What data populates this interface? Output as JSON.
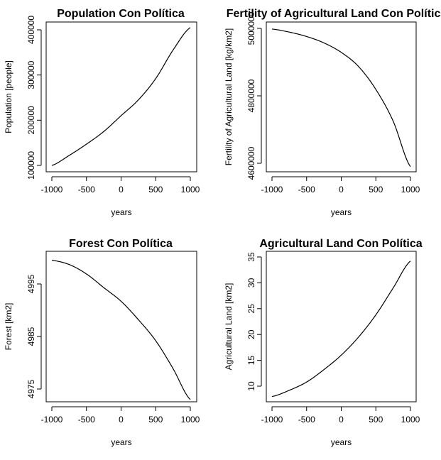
{
  "chart_data": [
    {
      "type": "line",
      "title": "Population Con Política",
      "xlabel": "years",
      "ylabel": "Population [people]",
      "xlim": [
        -1000,
        1000
      ],
      "ylim": [
        100000,
        400000
      ],
      "xticks": [
        -1000,
        -500,
        0,
        500,
        1000
      ],
      "yticks": [
        100000,
        200000,
        300000,
        400000
      ],
      "xtick_labels": [
        "-1000",
        "-500",
        "0",
        "500",
        "1000"
      ],
      "ytick_labels": [
        "100000",
        "200000",
        "300000",
        "400000"
      ],
      "grid": false,
      "series": [
        {
          "x": [
            -1000,
            -750,
            -500,
            -250,
            0,
            250,
            500,
            750,
            1000
          ],
          "y": [
            100000,
            122000,
            147000,
            175000,
            210000,
            245000,
            292000,
            355000,
            405000
          ]
        }
      ]
    },
    {
      "type": "line",
      "title": "Fertility of Agricultural Land Con Política",
      "xlabel": "years",
      "ylabel": "Fertility of Agricultural Land [kg/km2]",
      "xlim": [
        -1000,
        1000
      ],
      "ylim": [
        4600000,
        5000000
      ],
      "xticks": [
        -1000,
        -500,
        0,
        500,
        1000
      ],
      "yticks": [
        4600000,
        4800000,
        5000000
      ],
      "xtick_labels": [
        "-1000",
        "-500",
        "0",
        "500",
        "1000"
      ],
      "ytick_labels": [
        "4600000",
        "4800000",
        "5000000"
      ],
      "grid": false,
      "series": [
        {
          "x": [
            -1000,
            -750,
            -500,
            -250,
            0,
            250,
            500,
            750,
            1000
          ],
          "y": [
            4998000,
            4989000,
            4976000,
            4957000,
            4929000,
            4887000,
            4819000,
            4725000,
            4590000
          ]
        }
      ]
    },
    {
      "type": "line",
      "title": "Forest Con Política",
      "xlabel": "years",
      "ylabel": "Forest [km2]",
      "xlim": [
        -1000,
        1000
      ],
      "ylim": [
        4975,
        4995
      ],
      "xticks": [
        -1000,
        -500,
        0,
        500,
        1000
      ],
      "yticks": [
        4975,
        4985,
        4995
      ],
      "xtick_labels": [
        "-1000",
        "-500",
        "0",
        "500",
        "1000"
      ],
      "ytick_labels": [
        "4975",
        "4985",
        "4995"
      ],
      "grid": false,
      "series": [
        {
          "x": [
            -1000,
            -750,
            -500,
            -250,
            0,
            250,
            500,
            750,
            1000
          ],
          "y": [
            4999.5,
            4998.7,
            4996.9,
            4994.3,
            4991.7,
            4988.2,
            4984.2,
            4978.9,
            4973.0
          ]
        }
      ]
    },
    {
      "type": "line",
      "title": "Agricultural Land Con Política",
      "xlabel": "years",
      "ylabel": "Agricultural Land [km2]",
      "xlim": [
        -1000,
        1000
      ],
      "ylim": [
        10,
        35
      ],
      "xticks": [
        -1000,
        -500,
        0,
        500,
        1000
      ],
      "yticks": [
        10,
        15,
        20,
        25,
        30,
        35
      ],
      "xtick_labels": [
        "-1000",
        "-500",
        "0",
        "500",
        "1000"
      ],
      "ytick_labels": [
        "10",
        "15",
        "20",
        "25",
        "30",
        "35"
      ],
      "grid": false,
      "series": [
        {
          "x": [
            -1000,
            -750,
            -500,
            -250,
            0,
            250,
            500,
            750,
            1000
          ],
          "y": [
            8.0,
            9.2,
            10.8,
            13.2,
            16.0,
            19.5,
            23.8,
            29.0,
            34.2
          ]
        }
      ]
    }
  ]
}
